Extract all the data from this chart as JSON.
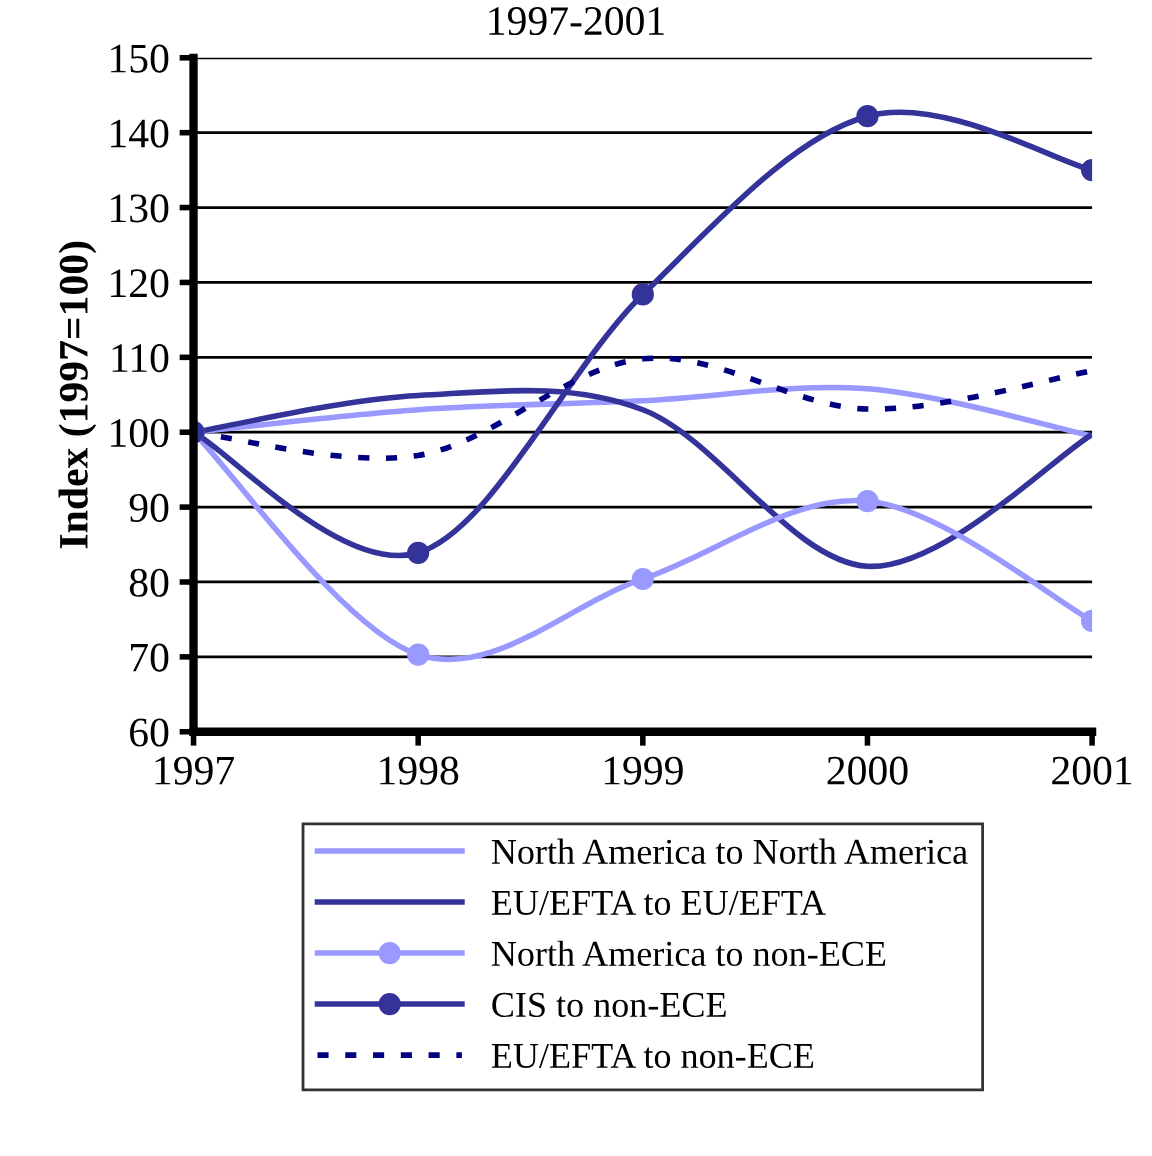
{
  "chart_data": {
    "type": "line",
    "title": "1997-2001",
    "ylabel": "Index (1997=100)",
    "x": [
      1997,
      1998,
      1999,
      2000,
      2001
    ],
    "xlim": [
      1997,
      2001
    ],
    "xticks": [
      1997,
      1998,
      1999,
      2000,
      2001
    ],
    "ylim": [
      60,
      150
    ],
    "yticks": [
      60,
      70,
      80,
      90,
      100,
      110,
      120,
      130,
      140,
      150
    ],
    "grid": "y",
    "legend": "bottom",
    "series": [
      {
        "name": "North America to North America",
        "color": "#9999ff",
        "marker": "none",
        "line_style": "solid",
        "values": [
          100,
          103,
          104.2,
          105.8,
          99.5
        ]
      },
      {
        "name": "EU/EFTA to EU/EFTA",
        "color": "#333399",
        "marker": "none",
        "line_style": "solid",
        "values": [
          100,
          104.9,
          103,
          82.1,
          99.7
        ]
      },
      {
        "name": "North America to non-ECE",
        "color": "#9999ff",
        "marker": "circle",
        "line_style": "solid",
        "values": [
          100,
          70.3,
          80.4,
          90.8,
          74.8
        ]
      },
      {
        "name": "CIS to non-ECE",
        "color": "#333399",
        "marker": "circle",
        "line_style": "solid",
        "values": [
          100,
          83.9,
          118.4,
          142.2,
          135
        ]
      },
      {
        "name": "EU/EFTA to non-ECE",
        "color": "#000080",
        "marker": "none",
        "line_style": "dotted",
        "values": [
          100,
          96.9,
          109.8,
          103.1,
          108.2
        ]
      }
    ]
  }
}
